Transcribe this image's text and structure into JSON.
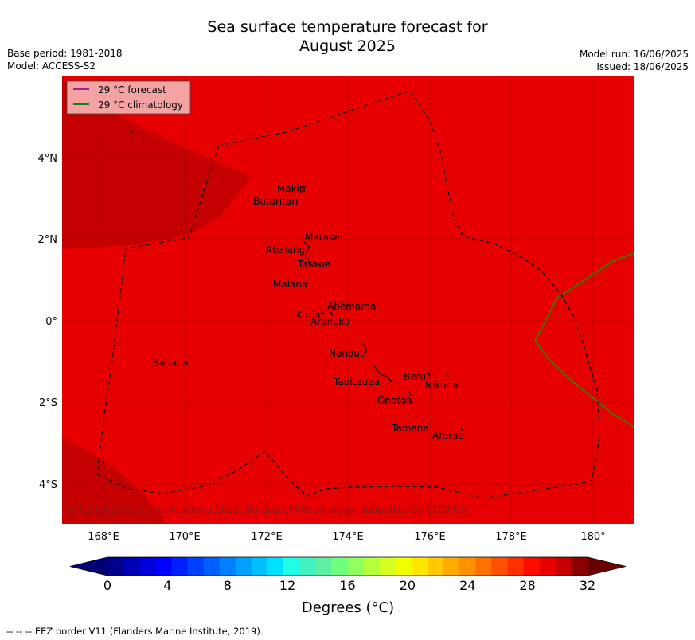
{
  "header": {
    "title_line1": "Sea surface temperature forecast for",
    "title_line2": "August 2025",
    "base_period": "Base period: 1981-2018",
    "model": "Model: ACCESS-S2",
    "model_run": "Model run: 16/06/2025",
    "issued": "Issued: 18/06/2025"
  },
  "legend": {
    "forecast_label": "29 °C  forecast",
    "climatology_label": "29 °C  climatology",
    "forecast_color": "#a0208f",
    "climatology_color": "#1a7a1a"
  },
  "map": {
    "lat_labels": [
      "4°N",
      "2°N",
      "0°",
      "2°S",
      "4°S"
    ],
    "lon_labels": [
      "168°E",
      "170°E",
      "172°E",
      "174°E",
      "176°E",
      "178°E",
      "180°"
    ],
    "background_color": "#e60000",
    "darker_region_color": "#c40000",
    "copyright": "© Commonwealth of Australia 2025, Bureau of Meteorology, supported by COSPPac",
    "islands": [
      {
        "name": "Makin"
      },
      {
        "name": "Butaritari"
      },
      {
        "name": "Marakei"
      },
      {
        "name": "Abaiang"
      },
      {
        "name": "Tarawa"
      },
      {
        "name": "Maiana"
      },
      {
        "name": "Abemama"
      },
      {
        "name": "Kuria"
      },
      {
        "name": "Aranuka"
      },
      {
        "name": "Nonouti"
      },
      {
        "name": "Banaba"
      },
      {
        "name": "Beru"
      },
      {
        "name": "Nikunau"
      },
      {
        "name": "Tabiteuea"
      },
      {
        "name": "Onotoa"
      },
      {
        "name": "Tamana"
      },
      {
        "name": "Arorae"
      }
    ]
  },
  "colorbar": {
    "tick_labels": [
      "0",
      "4",
      "8",
      "12",
      "16",
      "20",
      "24",
      "28",
      "32"
    ],
    "unit_label": "Degrees (°C)",
    "colors": [
      "#00008c",
      "#0000b4",
      "#0000dc",
      "#0000ff",
      "#0020ff",
      "#0040ff",
      "#0060ff",
      "#0080ff",
      "#00a0ff",
      "#00c0ff",
      "#00e0ff",
      "#20ffe6",
      "#40f2c0",
      "#5ef0a0",
      "#6eff80",
      "#90ff60",
      "#b4ff3c",
      "#d4ff20",
      "#f0ff00",
      "#ffe600",
      "#ffc800",
      "#ffaa00",
      "#ff9000",
      "#ff7000",
      "#ff5000",
      "#ff3000",
      "#ff0c00",
      "#e60000",
      "#c40000",
      "#8a0000"
    ],
    "under_color": "#000073",
    "over_color": "#6a0000"
  },
  "footer": {
    "eez_note": "--  --  -- EEZ border V11 (Flanders Marine Institute, 2019)."
  }
}
